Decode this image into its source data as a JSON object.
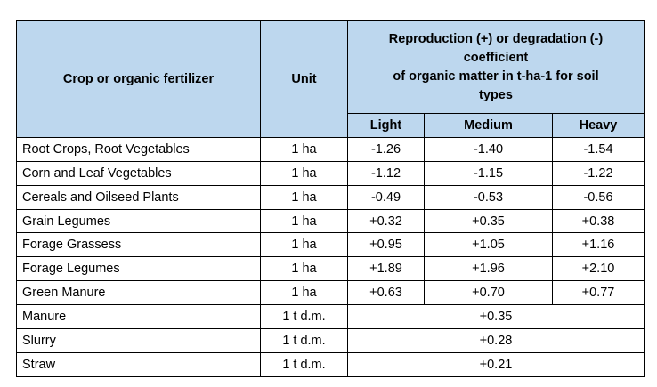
{
  "header": {
    "crop": "Crop or organic fertilizer",
    "unit": "Unit",
    "coef_line1": "Reproduction (+) or degradation (-)",
    "coef_line2": "coefficient",
    "coef_line3": "of organic matter in t-ha-1 for soil",
    "coef_line4": "types",
    "light": "Light",
    "medium": "Medium",
    "heavy": "Heavy"
  },
  "colors": {
    "header_bg": "#bdd7ee"
  },
  "rows": [
    {
      "name": "Root Crops, Root Vegetables",
      "unit": "1 ha",
      "light": "-1.26",
      "medium": "-1.40",
      "heavy": "-1.54"
    },
    {
      "name": "Corn and Leaf Vegetables",
      "unit": "1 ha",
      "light": "-1.12",
      "medium": "-1.15",
      "heavy": "-1.22"
    },
    {
      "name": "Cereals and Oilseed Plants",
      "unit": "1 ha",
      "light": "-0.49",
      "medium": "-0.53",
      "heavy": "-0.56"
    },
    {
      "name": "Grain Legumes",
      "unit": "1 ha",
      "light": "+0.32",
      "medium": "+0.35",
      "heavy": "+0.38"
    },
    {
      "name": "Forage Grassess",
      "unit": "1 ha",
      "light": "+0.95",
      "medium": "+1.05",
      "heavy": "+1.16"
    },
    {
      "name": "Forage Legumes",
      "unit": "1 ha",
      "light": "+1.89",
      "medium": "+1.96",
      "heavy": "+2.10"
    },
    {
      "name": "Green Manure",
      "unit": "1 ha",
      "light": "+0.63",
      "medium": "+0.70",
      "heavy": "+0.77"
    }
  ],
  "merged_rows": [
    {
      "name": "Manure",
      "unit": "1 t d.m.",
      "value": "+0.35"
    },
    {
      "name": "Slurry",
      "unit": "1 t d.m.",
      "value": "+0.28"
    },
    {
      "name": "Straw",
      "unit": "1 t d.m.",
      "value": "+0.21"
    }
  ]
}
